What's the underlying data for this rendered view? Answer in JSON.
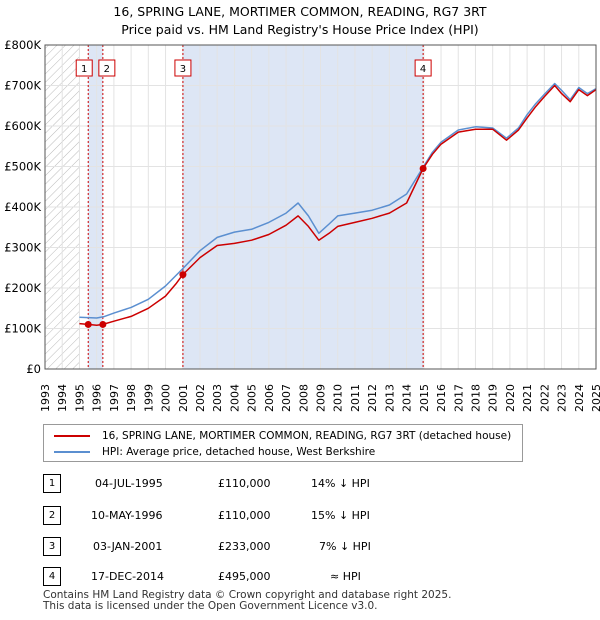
{
  "title_line1": "16, SPRING LANE, MORTIMER COMMON, READING, RG7 3RT",
  "title_line2": "Price paid vs. HM Land Registry's House Price Index (HPI)",
  "colors": {
    "property": "#cc0000",
    "hpi": "#5b8fd0",
    "shade": "#dde6f5",
    "vline": "#cc0000"
  },
  "chart_data": {
    "type": "line",
    "xlim": [
      1993,
      2025
    ],
    "ylim": [
      0,
      800000
    ],
    "yticks": [
      {
        "value": 0,
        "label": "£0"
      },
      {
        "value": 100000,
        "label": "£100K"
      },
      {
        "value": 200000,
        "label": "£200K"
      },
      {
        "value": 300000,
        "label": "£300K"
      },
      {
        "value": 400000,
        "label": "£400K"
      },
      {
        "value": 500000,
        "label": "£500K"
      },
      {
        "value": 600000,
        "label": "£600K"
      },
      {
        "value": 700000,
        "label": "£700K"
      },
      {
        "value": 800000,
        "label": "£800K"
      }
    ],
    "xticks": [
      "1993",
      "1994",
      "1995",
      "1996",
      "1997",
      "1998",
      "1999",
      "2000",
      "2001",
      "2002",
      "2003",
      "2004",
      "2005",
      "2006",
      "2007",
      "2008",
      "2009",
      "2010",
      "2011",
      "2012",
      "2013",
      "2014",
      "2015",
      "2016",
      "2017",
      "2018",
      "2019",
      "2020",
      "2021",
      "2022",
      "2023",
      "2024",
      "2025"
    ],
    "data_start": 1995.0,
    "series": [
      {
        "name": "16, SPRING LANE, MORTIMER COMMON, READING, RG7 3RT (detached house)",
        "color": "#cc0000",
        "points": [
          [
            1995.0,
            112000
          ],
          [
            1995.5,
            110000
          ],
          [
            1996.0,
            108000
          ],
          [
            1996.36,
            110000
          ],
          [
            1997.0,
            118000
          ],
          [
            1998.0,
            130000
          ],
          [
            1999.0,
            150000
          ],
          [
            2000.0,
            180000
          ],
          [
            2000.6,
            210000
          ],
          [
            2001.0,
            233000
          ],
          [
            2002.0,
            275000
          ],
          [
            2003.0,
            305000
          ],
          [
            2004.0,
            310000
          ],
          [
            2005.0,
            318000
          ],
          [
            2006.0,
            332000
          ],
          [
            2007.0,
            355000
          ],
          [
            2007.7,
            378000
          ],
          [
            2008.3,
            352000
          ],
          [
            2008.9,
            318000
          ],
          [
            2009.5,
            335000
          ],
          [
            2010.0,
            352000
          ],
          [
            2011.0,
            362000
          ],
          [
            2012.0,
            372000
          ],
          [
            2013.0,
            385000
          ],
          [
            2014.0,
            410000
          ],
          [
            2014.96,
            495000
          ],
          [
            2015.5,
            530000
          ],
          [
            2016.0,
            555000
          ],
          [
            2017.0,
            585000
          ],
          [
            2018.0,
            592000
          ],
          [
            2019.0,
            592000
          ],
          [
            2019.8,
            565000
          ],
          [
            2020.5,
            590000
          ],
          [
            2021.0,
            620000
          ],
          [
            2021.5,
            648000
          ],
          [
            2022.0,
            672000
          ],
          [
            2022.6,
            700000
          ],
          [
            2023.0,
            680000
          ],
          [
            2023.5,
            660000
          ],
          [
            2024.0,
            690000
          ],
          [
            2024.5,
            675000
          ],
          [
            2025.0,
            690000
          ]
        ]
      },
      {
        "name": "HPI: Average price, detached house, West Berkshire",
        "color": "#5b8fd0",
        "points": [
          [
            1995.0,
            128000
          ],
          [
            1995.5,
            127000
          ],
          [
            1996.0,
            126000
          ],
          [
            1996.4,
            129000
          ],
          [
            1997.0,
            138000
          ],
          [
            1998.0,
            152000
          ],
          [
            1999.0,
            172000
          ],
          [
            2000.0,
            205000
          ],
          [
            2001.0,
            248000
          ],
          [
            2002.0,
            292000
          ],
          [
            2003.0,
            325000
          ],
          [
            2004.0,
            338000
          ],
          [
            2005.0,
            345000
          ],
          [
            2006.0,
            362000
          ],
          [
            2007.0,
            385000
          ],
          [
            2007.7,
            410000
          ],
          [
            2008.3,
            378000
          ],
          [
            2008.9,
            335000
          ],
          [
            2009.5,
            358000
          ],
          [
            2010.0,
            378000
          ],
          [
            2011.0,
            385000
          ],
          [
            2012.0,
            392000
          ],
          [
            2013.0,
            405000
          ],
          [
            2014.0,
            432000
          ],
          [
            2014.96,
            498000
          ],
          [
            2015.5,
            535000
          ],
          [
            2016.0,
            560000
          ],
          [
            2017.0,
            590000
          ],
          [
            2018.0,
            598000
          ],
          [
            2019.0,
            595000
          ],
          [
            2019.8,
            570000
          ],
          [
            2020.5,
            595000
          ],
          [
            2021.0,
            628000
          ],
          [
            2021.5,
            655000
          ],
          [
            2022.0,
            678000
          ],
          [
            2022.6,
            705000
          ],
          [
            2023.0,
            688000
          ],
          [
            2023.5,
            665000
          ],
          [
            2024.0,
            695000
          ],
          [
            2024.5,
            680000
          ],
          [
            2025.0,
            692000
          ]
        ]
      }
    ],
    "transactions": [
      {
        "id": "1",
        "x": 1995.51,
        "price": 110000,
        "date": "04-JUL-1995",
        "price_label": "£110,000",
        "hpi": "14% ↓ HPI"
      },
      {
        "id": "2",
        "x": 1996.36,
        "price": 110000,
        "date": "10-MAY-1996",
        "price_label": "£110,000",
        "hpi": "15% ↓ HPI"
      },
      {
        "id": "3",
        "x": 2001.01,
        "price": 233000,
        "date": "03-JAN-2001",
        "price_label": "£233,000",
        "hpi": "7% ↓ HPI"
      },
      {
        "id": "4",
        "x": 2014.96,
        "price": 495000,
        "date": "17-DEC-2014",
        "price_label": "£495,000",
        "hpi": "≈ HPI"
      }
    ]
  },
  "legend": {
    "property": "16, SPRING LANE, MORTIMER COMMON, READING, RG7 3RT (detached house)",
    "hpi": "HPI: Average price, detached house, West Berkshire"
  },
  "footer_line1": "Contains HM Land Registry data © Crown copyright and database right 2025.",
  "footer_line2": "This data is licensed under the Open Government Licence v3.0."
}
